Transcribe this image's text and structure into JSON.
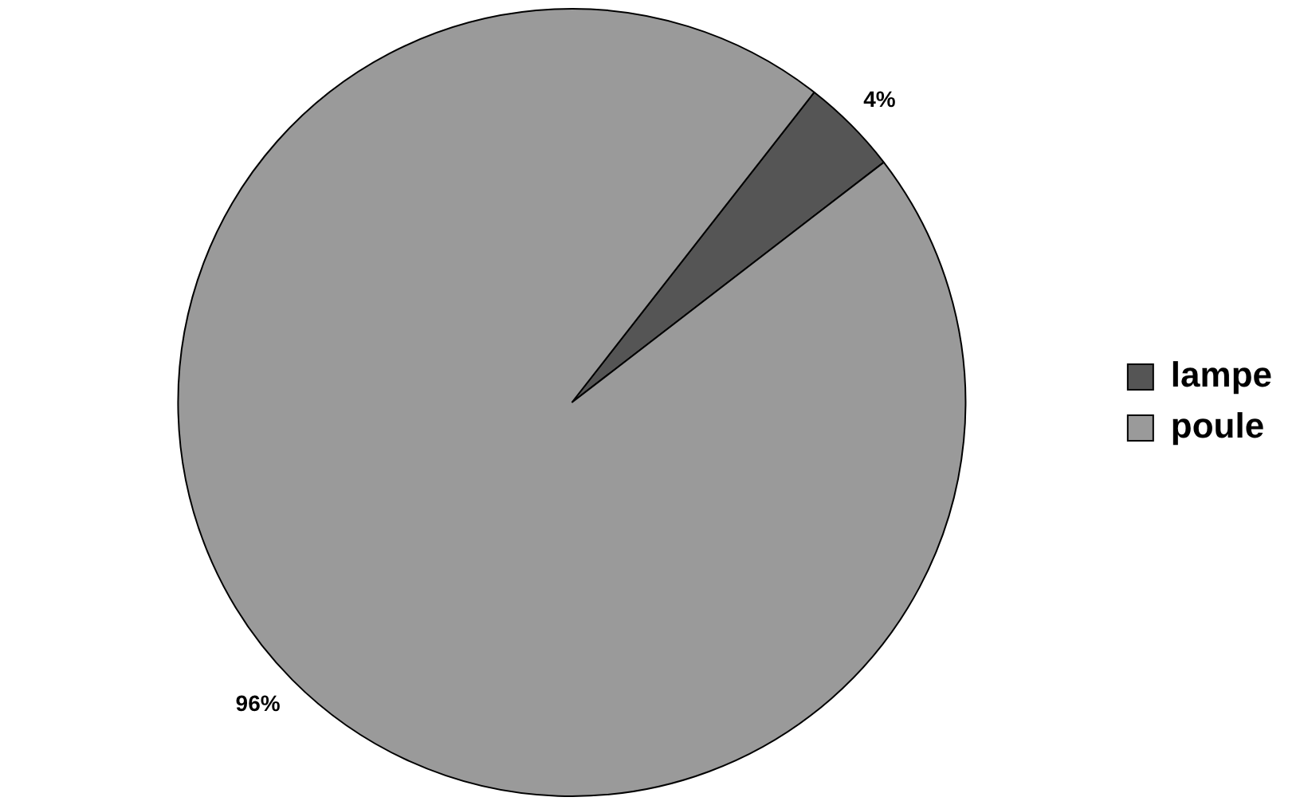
{
  "chart_data": {
    "type": "pie",
    "categories": [
      "lampe",
      "poule"
    ],
    "values": [
      4,
      96
    ],
    "colors": [
      "#555555",
      "#9a9a9a"
    ],
    "value_labels": [
      "4%",
      "96%"
    ],
    "legend": "right"
  }
}
